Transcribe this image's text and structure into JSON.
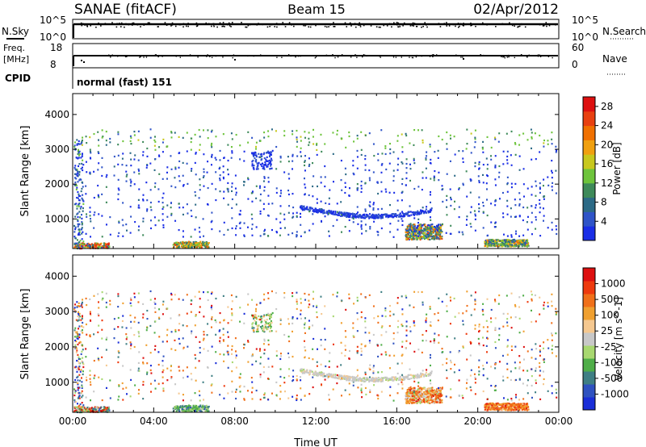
{
  "header": {
    "left": "SANAE (fitACF)",
    "center": "Beam 15",
    "right": "02/Apr/2012"
  },
  "nsky_panel": {
    "left_label": "N.Sky",
    "right_label": "N.Search",
    "left_ticks": [
      "10^5",
      "10^0"
    ],
    "right_ticks": [
      "10^5",
      "10^0"
    ]
  },
  "freq_panel": {
    "left_label_1": "Freq.",
    "left_label_2": "[MHz]",
    "right_label": "Nave",
    "left_ticks": [
      "18",
      "8"
    ],
    "right_ticks": [
      "60",
      "0"
    ]
  },
  "cpid": {
    "label": "CPID",
    "value": "normal (fast) 151"
  },
  "colors": {
    "power": [
      "#1a2ee6",
      "#2f54c8",
      "#2c6a86",
      "#3e8a5a",
      "#6ec43c",
      "#c8c81e",
      "#f0a010",
      "#f07000",
      "#e84010",
      "#dd1010"
    ],
    "velocity": [
      "#dd1010",
      "#ee3a0e",
      "#f0701a",
      "#f0a030",
      "#f5c890",
      "#c8c8c8",
      "#a8d870",
      "#4fae48",
      "#3f7f84",
      "#2f52c0",
      "#1a2ed8"
    ]
  },
  "chart_data": [
    {
      "type": "heatmap",
      "name": "power",
      "ylabel": "Slant Range [km]",
      "yticks": [
        "1000",
        "2000",
        "3000",
        "4000"
      ],
      "ylim": [
        150,
        4600
      ],
      "xlim": [
        0,
        24
      ],
      "colorbar_label": "Power [dB]",
      "colorbar_ticks": [
        "4",
        "8",
        "12",
        "16",
        "20",
        "24",
        "28"
      ],
      "colorbar_range": [
        0,
        30
      ]
    },
    {
      "type": "heatmap",
      "name": "velocity",
      "ylabel": "Slant Range [km]",
      "yticks": [
        "1000",
        "2000",
        "3000",
        "4000"
      ],
      "ylim": [
        150,
        4600
      ],
      "xlim": [
        0,
        24
      ],
      "xlabel": "Time UT",
      "xticks": [
        "00:00",
        "04:00",
        "08:00",
        "12:00",
        "16:00",
        "20:00",
        "00:00"
      ],
      "colorbar_label": "Velocity [m s^-1]",
      "colorbar_ticks": [
        "1000",
        "500",
        "100",
        "25",
        "-25",
        "-100",
        "-500",
        "-1000"
      ]
    }
  ]
}
